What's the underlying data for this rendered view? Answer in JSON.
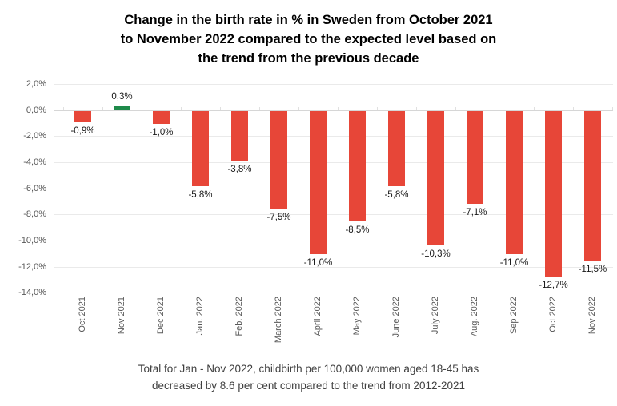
{
  "title": {
    "lines": [
      "Change in the birth rate in % in Sweden from October 2021",
      "to November 2022 compared to the expected level based on",
      "the trend from the previous decade"
    ]
  },
  "caption": {
    "lines": [
      "Total for Jan - Nov 2022, childbirth per 100,000 women aged 18-45 has",
      "decreased by 8.6 per cent compared to the trend from 2012-2021"
    ]
  },
  "chart_data": {
    "type": "bar",
    "title": "Change in the birth rate in % in Sweden from October 2021 to November 2022 compared to the expected level based on the trend from the previous decade",
    "categories": [
      "Oct 2021",
      "Nov 2021",
      "Dec 2021",
      "Jan. 2022",
      "Feb. 2022",
      "March 2022",
      "April 2022",
      "May 2022",
      "June 2022",
      "July 2022",
      "Aug. 2022",
      "Sep 2022",
      "Oct 2022",
      "Nov 2022"
    ],
    "values": [
      -0.9,
      0.3,
      -1.0,
      -5.8,
      -3.8,
      -7.5,
      -11.0,
      -8.5,
      -5.8,
      -10.3,
      -7.1,
      -11.0,
      -12.7,
      -11.5
    ],
    "value_labels": [
      "-0,9%",
      "0,3%",
      "-1,0%",
      "-5,8%",
      "-3,8%",
      "-7,5%",
      "-11,0%",
      "-8,5%",
      "-5,8%",
      "-10,3%",
      "-7,1%",
      "-11,0%",
      "-12,7%",
      "-11,5%"
    ],
    "yticks": [
      2.0,
      0.0,
      -2.0,
      -4.0,
      -6.0,
      -8.0,
      -10.0,
      -12.0,
      -14.0
    ],
    "ytick_labels": [
      "2,0%",
      "0,0%",
      "-2,0%",
      "-4,0%",
      "-6,0%",
      "-8,0%",
      "-10,0%",
      "-12,0%",
      "-14,0%"
    ],
    "ylim": [
      -14.0,
      2.0
    ],
    "xlabel": "",
    "ylabel": "",
    "grid": true,
    "legend": false,
    "colors": {
      "negative_bar": "#e74638",
      "positive_bar": "#1e8a4a",
      "gridline": "#eaeaea",
      "zero_line": "#d6d6d6",
      "axis_text": "#595959",
      "value_text": "#1a1a1a",
      "title_text": "#000000",
      "caption_text": "#404040"
    }
  }
}
